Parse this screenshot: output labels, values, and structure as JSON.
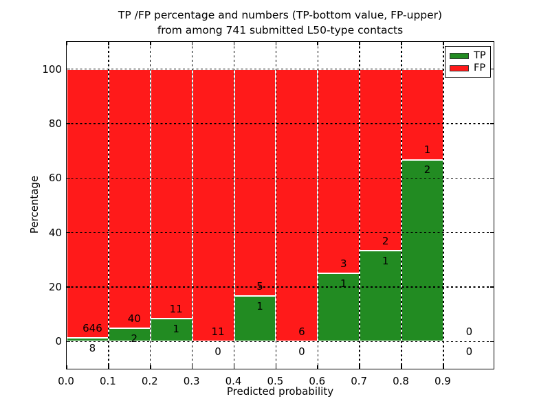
{
  "title": {
    "line1": "TP /FP percentage and numbers (TP-bottom value, FP-upper)",
    "line2": "from among 741 submitted L50-type contacts"
  },
  "axes": {
    "xlabel": "Predicted probability",
    "ylabel": "Percentage",
    "x_tick_labels": [
      "0.0",
      "0.1",
      "0.2",
      "0.3",
      "0.4",
      "0.5",
      "0.6",
      "0.7",
      "0.8",
      "0.9"
    ],
    "y_tick_labels": [
      "0",
      "20",
      "40",
      "60",
      "80",
      "100"
    ],
    "xlim": [
      0.0,
      1.02
    ],
    "ylim": [
      -10,
      110
    ],
    "grid": "dotted black, on top of bars"
  },
  "legend": {
    "position": "upper right",
    "items": [
      {
        "label": "TP",
        "color": "#228b22"
      },
      {
        "label": "FP",
        "color": "#ff1a1a"
      }
    ]
  },
  "chart_data": {
    "type": "bar",
    "stacked": true,
    "title": "TP /FP percentage and numbers (TP-bottom value, FP-upper) from among 741 submitted L50-type contacts",
    "xlabel": "Predicted probability",
    "ylabel": "Percentage",
    "total_contacts": 741,
    "bar_width": 0.1,
    "colors": {
      "tp": "#228b22",
      "fp": "#ff1a1a",
      "bar_edge": "#ffffff"
    },
    "bins": [
      {
        "range": [
          0.0,
          0.1
        ],
        "tp": 8,
        "fp": 646,
        "tp_percent": 1.22,
        "fp_percent": 98.78
      },
      {
        "range": [
          0.1,
          0.2
        ],
        "tp": 2,
        "fp": 40,
        "tp_percent": 4.76,
        "fp_percent": 95.24
      },
      {
        "range": [
          0.2,
          0.3
        ],
        "tp": 1,
        "fp": 11,
        "tp_percent": 8.33,
        "fp_percent": 91.67
      },
      {
        "range": [
          0.3,
          0.4
        ],
        "tp": 0,
        "fp": 11,
        "tp_percent": 0.0,
        "fp_percent": 100.0
      },
      {
        "range": [
          0.4,
          0.5
        ],
        "tp": 1,
        "fp": 5,
        "tp_percent": 16.67,
        "fp_percent": 83.33
      },
      {
        "range": [
          0.5,
          0.6
        ],
        "tp": 0,
        "fp": 6,
        "tp_percent": 0.0,
        "fp_percent": 100.0
      },
      {
        "range": [
          0.6,
          0.7
        ],
        "tp": 1,
        "fp": 3,
        "tp_percent": 25.0,
        "fp_percent": 75.0
      },
      {
        "range": [
          0.7,
          0.8
        ],
        "tp": 1,
        "fp": 2,
        "tp_percent": 33.33,
        "fp_percent": 66.67
      },
      {
        "range": [
          0.8,
          0.9
        ],
        "tp": 2,
        "fp": 1,
        "tp_percent": 66.67,
        "fp_percent": 33.33
      },
      {
        "range": [
          0.9,
          1.0
        ],
        "tp": 0,
        "fp": 0,
        "tp_percent": null,
        "fp_percent": null
      }
    ]
  }
}
